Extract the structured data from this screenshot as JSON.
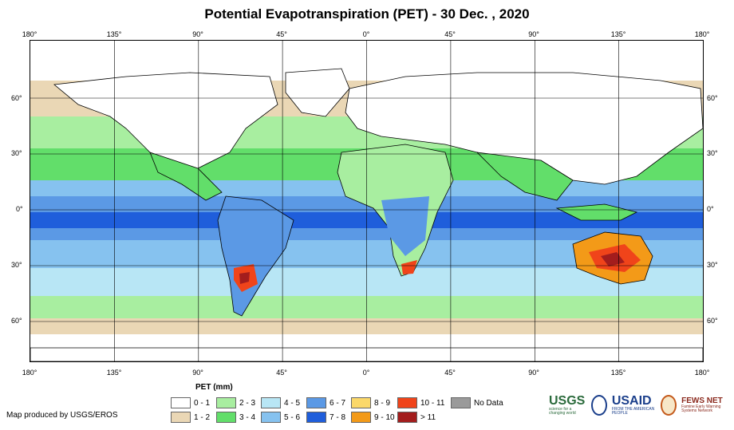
{
  "title": "Potential Evapotranspiration (PET) - 30 Dec. , 2020",
  "lon_labels": [
    "180°",
    "135°",
    "90°",
    "45°",
    "0°",
    "45°",
    "90°",
    "135°",
    "180°"
  ],
  "lat_labels": [
    "60°",
    "30°",
    "0°",
    "30°",
    "60°"
  ],
  "legend": {
    "title": "PET (mm)",
    "items": [
      {
        "label": "0 - 1",
        "color": "#ffffff"
      },
      {
        "label": "1 - 2",
        "color": "#ead7b5"
      },
      {
        "label": "2 - 3",
        "color": "#a8eea0"
      },
      {
        "label": "3 - 4",
        "color": "#62de6a"
      },
      {
        "label": "4 - 5",
        "color": "#b8e6f5"
      },
      {
        "label": "5 - 6",
        "color": "#86c2ef"
      },
      {
        "label": "6 - 7",
        "color": "#5b99e5"
      },
      {
        "label": "7 - 8",
        "color": "#1f5edb"
      },
      {
        "label": "8 - 9",
        "color": "#fbd86a"
      },
      {
        "label": "9 - 10",
        "color": "#f39a18"
      },
      {
        "label": "10 - 11",
        "color": "#f0441a"
      },
      {
        "label": "> 11",
        "color": "#a31d1d"
      },
      {
        "label": "No Data",
        "color": "#9a9a9a"
      }
    ]
  },
  "credit": "Map produced by USGS/EROS",
  "logos": {
    "usgs": "USGS",
    "usgs_tagline": "science for a changing world",
    "usaid": "USAID",
    "usaid_tagline": "FROM THE AMERICAN PEOPLE",
    "fews": "FEWS NET",
    "fews_tagline": "Famine Early Warning Systems Network"
  }
}
